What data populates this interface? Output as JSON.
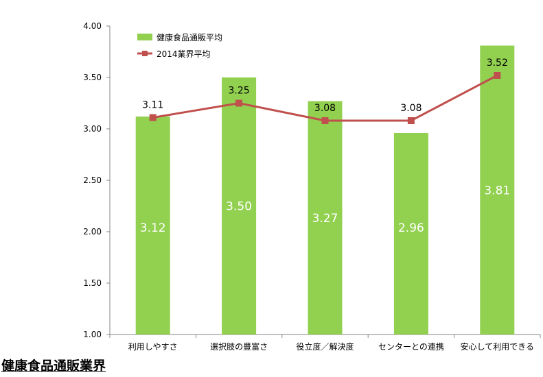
{
  "section_title": "健康食品通販業界",
  "colors": {
    "bar": "#92d050",
    "line": "#c0504d",
    "axis": "#868686",
    "bar_label": "#ffffff"
  },
  "chart_data": {
    "type": "bar",
    "categories": [
      "利用しやすさ",
      "選択肢の豊富さ",
      "役立度／解決度",
      "センターとの連携",
      "安心して利用できる"
    ],
    "series": [
      {
        "name": "健康食品通販平均",
        "kind": "bar",
        "values": [
          3.12,
          3.5,
          3.27,
          2.96,
          3.81
        ]
      },
      {
        "name": "2014業界平均",
        "kind": "line",
        "values": [
          3.11,
          3.25,
          3.08,
          3.08,
          3.52
        ]
      }
    ],
    "ylim": [
      1.0,
      4.0
    ],
    "yticks": [
      "1.00",
      "1.50",
      "2.00",
      "2.50",
      "3.00",
      "3.50",
      "4.00"
    ],
    "legend": "top-left",
    "grid": false
  }
}
